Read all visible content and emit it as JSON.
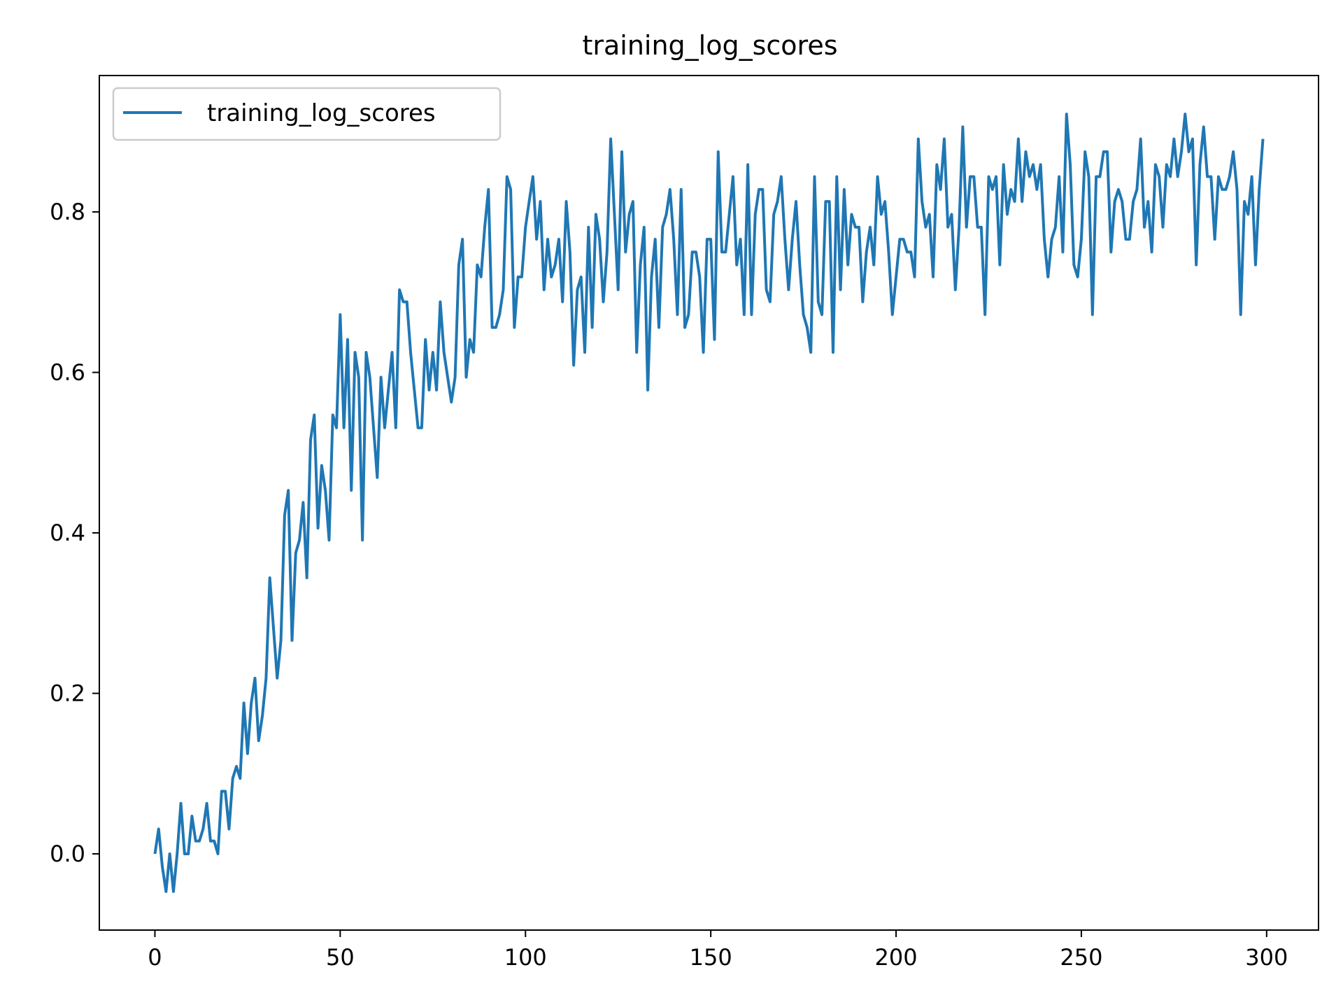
{
  "chart_data": {
    "type": "line",
    "title": "training_log_scores",
    "xlabel": "",
    "ylabel": "",
    "xlim": [
      -15,
      314
    ],
    "ylim": [
      -0.095,
      0.97
    ],
    "xticks": [
      0,
      50,
      100,
      150,
      200,
      250,
      300
    ],
    "yticks": [
      0.0,
      0.2,
      0.4,
      0.6,
      0.8
    ],
    "xtick_labels": [
      "0",
      "50",
      "100",
      "150",
      "200",
      "250",
      "300"
    ],
    "ytick_labels": [
      "0.0",
      "0.2",
      "0.4",
      "0.6",
      "0.8"
    ],
    "grid": false,
    "legend": {
      "placement": "upper-left",
      "entries": [
        "training_log_scores"
      ]
    },
    "colors": {
      "series": "#1f77b4",
      "axes": "#000000",
      "legend_border": "#cccccc"
    },
    "x": [
      0,
      1,
      2,
      3,
      4,
      5,
      6,
      7,
      8,
      9,
      10,
      11,
      12,
      13,
      14,
      15,
      16,
      17,
      18,
      19,
      20,
      21,
      22,
      23,
      24,
      25,
      26,
      27,
      28,
      29,
      30,
      31,
      32,
      33,
      34,
      35,
      36,
      37,
      38,
      39,
      40,
      41,
      42,
      43,
      44,
      45,
      46,
      47,
      48,
      49,
      50,
      51,
      52,
      53,
      54,
      55,
      56,
      57,
      58,
      59,
      60,
      61,
      62,
      63,
      64,
      65,
      66,
      67,
      68,
      69,
      70,
      71,
      72,
      73,
      74,
      75,
      76,
      77,
      78,
      79,
      80,
      81,
      82,
      83,
      84,
      85,
      86,
      87,
      88,
      89,
      90,
      91,
      92,
      93,
      94,
      95,
      96,
      97,
      98,
      99,
      100,
      101,
      102,
      103,
      104,
      105,
      106,
      107,
      108,
      109,
      110,
      111,
      112,
      113,
      114,
      115,
      116,
      117,
      118,
      119,
      120,
      121,
      122,
      123,
      124,
      125,
      126,
      127,
      128,
      129,
      130,
      131,
      132,
      133,
      134,
      135,
      136,
      137,
      138,
      139,
      140,
      141,
      142,
      143,
      144,
      145,
      146,
      147,
      148,
      149,
      150,
      151,
      152,
      153,
      154,
      155,
      156,
      157,
      158,
      159,
      160,
      161,
      162,
      163,
      164,
      165,
      166,
      167,
      168,
      169,
      170,
      171,
      172,
      173,
      174,
      175,
      176,
      177,
      178,
      179,
      180,
      181,
      182,
      183,
      184,
      185,
      186,
      187,
      188,
      189,
      190,
      191,
      192,
      193,
      194,
      195,
      196,
      197,
      198,
      199,
      200,
      201,
      202,
      203,
      204,
      205,
      206,
      207,
      208,
      209,
      210,
      211,
      212,
      213,
      214,
      215,
      216,
      217,
      218,
      219,
      220,
      221,
      222,
      223,
      224,
      225,
      226,
      227,
      228,
      229,
      230,
      231,
      232,
      233,
      234,
      235,
      236,
      237,
      238,
      239,
      240,
      241,
      242,
      243,
      244,
      245,
      246,
      247,
      248,
      249,
      250,
      251,
      252,
      253,
      254,
      255,
      256,
      257,
      258,
      259,
      260,
      261,
      262,
      263,
      264,
      265,
      266,
      267,
      268,
      269,
      270,
      271,
      272,
      273,
      274,
      275,
      276,
      277,
      278,
      279,
      280,
      281,
      282,
      283,
      284,
      285,
      286,
      287,
      288,
      289,
      290,
      291,
      292,
      293,
      294,
      295,
      296,
      297,
      298,
      299
    ],
    "series": [
      {
        "name": "training_log_scores",
        "values": [
          0.0,
          0.031,
          -0.016,
          -0.047,
          0.0,
          -0.047,
          0.0,
          0.063,
          0.0,
          0.0,
          0.047,
          0.016,
          0.016,
          0.031,
          0.063,
          0.016,
          0.016,
          0.0,
          0.078,
          0.078,
          0.031,
          0.094,
          0.109,
          0.094,
          0.188,
          0.125,
          0.188,
          0.219,
          0.141,
          0.172,
          0.219,
          0.344,
          0.281,
          0.219,
          0.266,
          0.422,
          0.453,
          0.266,
          0.375,
          0.391,
          0.438,
          0.344,
          0.516,
          0.547,
          0.406,
          0.484,
          0.453,
          0.391,
          0.547,
          0.531,
          0.672,
          0.531,
          0.641,
          0.453,
          0.625,
          0.594,
          0.391,
          0.625,
          0.594,
          0.531,
          0.469,
          0.594,
          0.531,
          0.578,
          0.625,
          0.531,
          0.703,
          0.688,
          0.688,
          0.625,
          0.578,
          0.531,
          0.531,
          0.641,
          0.578,
          0.625,
          0.578,
          0.688,
          0.625,
          0.594,
          0.563,
          0.594,
          0.734,
          0.766,
          0.594,
          0.641,
          0.625,
          0.734,
          0.719,
          0.781,
          0.828,
          0.656,
          0.656,
          0.672,
          0.703,
          0.844,
          0.828,
          0.656,
          0.719,
          0.719,
          0.781,
          0.813,
          0.844,
          0.766,
          0.813,
          0.703,
          0.766,
          0.719,
          0.734,
          0.766,
          0.688,
          0.813,
          0.75,
          0.609,
          0.703,
          0.719,
          0.625,
          0.781,
          0.656,
          0.797,
          0.766,
          0.688,
          0.75,
          0.891,
          0.797,
          0.703,
          0.875,
          0.75,
          0.797,
          0.813,
          0.625,
          0.734,
          0.781,
          0.578,
          0.719,
          0.766,
          0.656,
          0.781,
          0.797,
          0.828,
          0.766,
          0.672,
          0.828,
          0.656,
          0.672,
          0.75,
          0.75,
          0.719,
          0.625,
          0.766,
          0.766,
          0.641,
          0.875,
          0.75,
          0.75,
          0.797,
          0.844,
          0.734,
          0.766,
          0.672,
          0.859,
          0.672,
          0.797,
          0.828,
          0.828,
          0.703,
          0.688,
          0.797,
          0.813,
          0.844,
          0.766,
          0.703,
          0.766,
          0.813,
          0.734,
          0.672,
          0.656,
          0.625,
          0.844,
          0.688,
          0.672,
          0.813,
          0.813,
          0.625,
          0.844,
          0.703,
          0.828,
          0.734,
          0.797,
          0.781,
          0.781,
          0.688,
          0.75,
          0.781,
          0.734,
          0.844,
          0.797,
          0.813,
          0.75,
          0.672,
          0.719,
          0.766,
          0.766,
          0.75,
          0.75,
          0.719,
          0.891,
          0.813,
          0.781,
          0.797,
          0.719,
          0.859,
          0.828,
          0.891,
          0.781,
          0.797,
          0.703,
          0.781,
          0.906,
          0.781,
          0.844,
          0.844,
          0.781,
          0.781,
          0.672,
          0.844,
          0.828,
          0.844,
          0.734,
          0.859,
          0.797,
          0.828,
          0.813,
          0.891,
          0.813,
          0.875,
          0.844,
          0.859,
          0.828,
          0.859,
          0.766,
          0.719,
          0.766,
          0.781,
          0.844,
          0.75,
          0.922,
          0.859,
          0.734,
          0.719,
          0.766,
          0.875,
          0.844,
          0.672,
          0.844,
          0.844,
          0.875,
          0.875,
          0.75,
          0.813,
          0.828,
          0.813,
          0.766,
          0.766,
          0.813,
          0.828,
          0.891,
          0.781,
          0.813,
          0.75,
          0.859,
          0.844,
          0.781,
          0.859,
          0.844,
          0.891,
          0.844,
          0.875,
          0.922,
          0.875,
          0.891,
          0.734,
          0.859,
          0.906,
          0.844,
          0.844,
          0.766,
          0.844,
          0.828,
          0.828,
          0.844,
          0.875,
          0.828,
          0.672,
          0.813,
          0.797,
          0.844,
          0.734,
          0.828,
          0.891
        ]
      }
    ]
  }
}
